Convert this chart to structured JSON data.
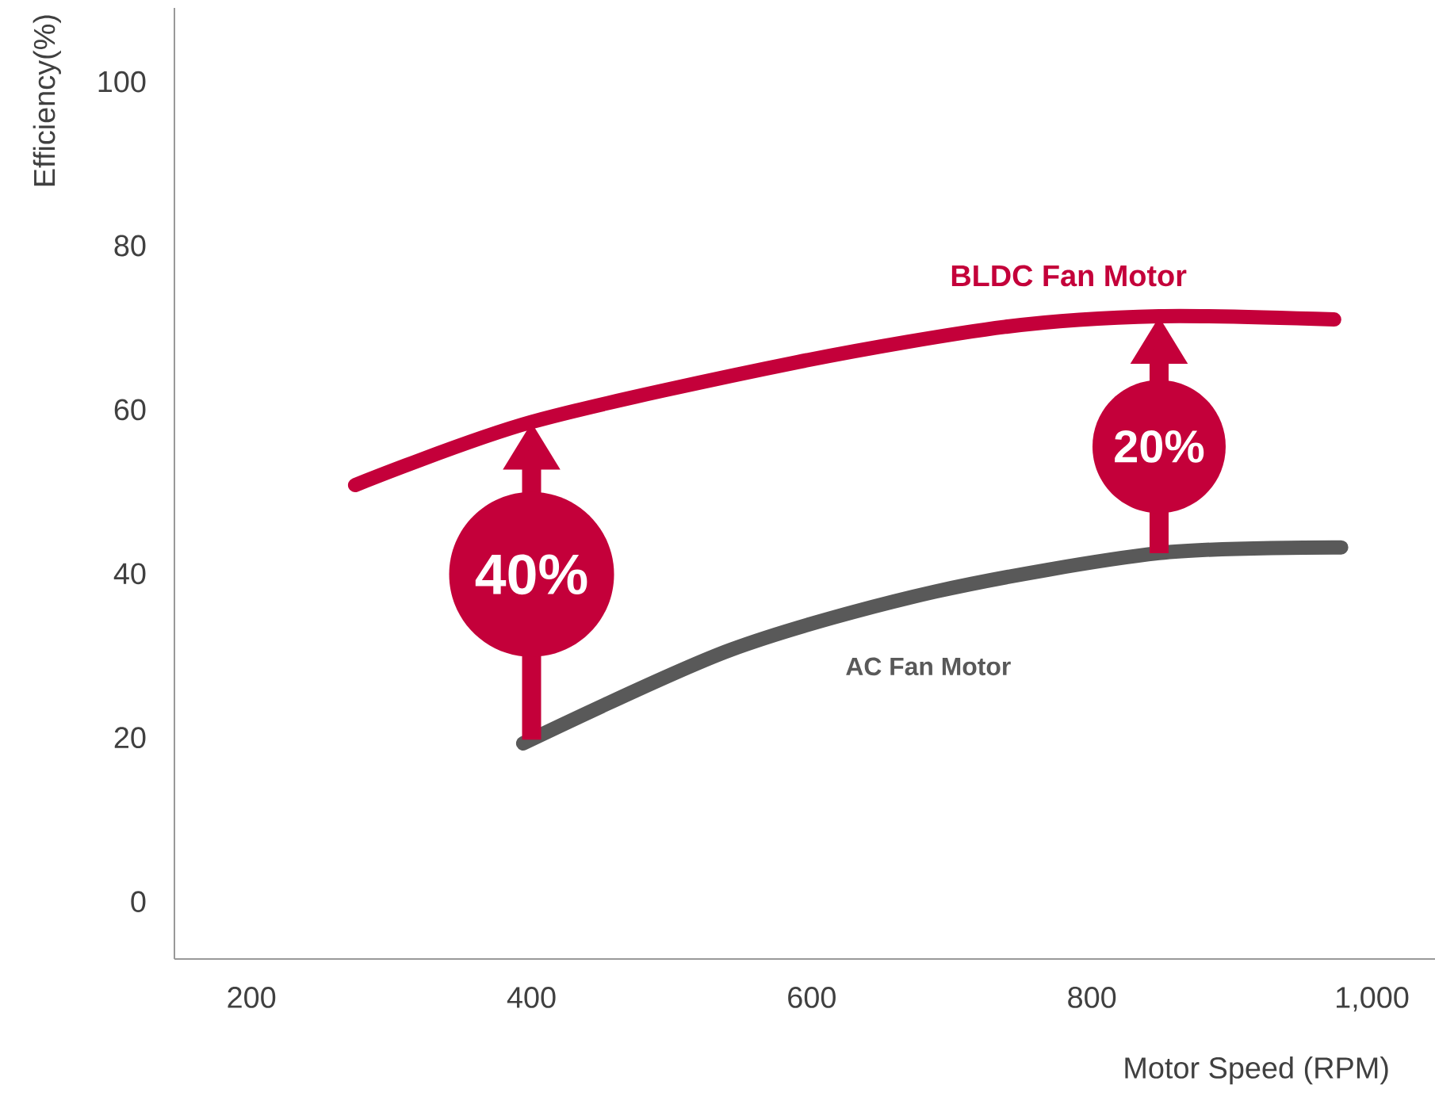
{
  "chart_data": {
    "type": "line",
    "xlabel": "Motor Speed (RPM)",
    "ylabel": "Efficiency(%)",
    "xlim": [
      145,
      1045
    ],
    "ylim": [
      -7,
      109
    ],
    "xticks": [
      200,
      400,
      600,
      800,
      {
        "value": 1000,
        "label": "1,000"
      }
    ],
    "yticks": [
      0,
      20,
      40,
      60,
      80,
      100
    ],
    "grid": false,
    "marker": "none",
    "line_style": "solid",
    "series": [
      {
        "name": "BLDC Fan Motor",
        "color": "#c4003a",
        "x": [
          274,
          400,
          590,
          738,
          848,
          973
        ],
        "values": [
          50.8,
          58.5,
          65.8,
          70.1,
          71.4,
          71.0
        ]
      },
      {
        "name": "AC Fan Motor",
        "color": "#595959",
        "x": [
          394,
          542,
          688,
          848,
          978
        ],
        "values": [
          19.3,
          30.7,
          37.8,
          42.5,
          43.2
        ]
      }
    ],
    "annotations": [
      "40%",
      "20%"
    ]
  }
}
